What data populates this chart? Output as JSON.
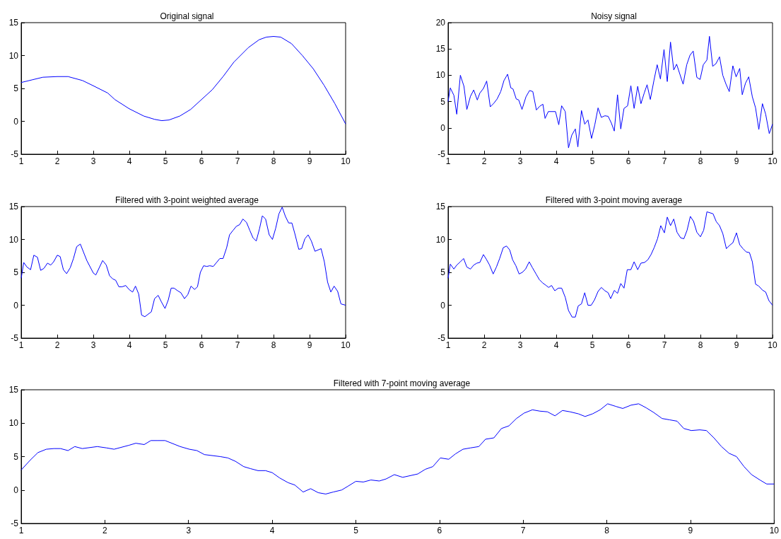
{
  "chart_data": [
    {
      "type": "line",
      "title": "Original signal",
      "color": "#0000ff",
      "xlim": [
        1,
        10
      ],
      "xticks": [
        1,
        2,
        3,
        4,
        5,
        6,
        7,
        8,
        9,
        10
      ],
      "ylim": [
        -5,
        15
      ],
      "yticks": [
        -5,
        0,
        5,
        10,
        15
      ],
      "grid": false,
      "x": [
        1,
        1.3,
        1.6,
        2,
        2.3,
        2.7,
        3,
        3.4,
        3.6,
        4,
        4.4,
        4.7,
        4.9,
        5.1,
        5.4,
        5.7,
        6,
        6.3,
        6.6,
        6.9,
        7.3,
        7.6,
        7.8,
        8,
        8.2,
        8.5,
        8.8,
        9.1,
        9.4,
        9.7,
        10
      ],
      "values": [
        5.9,
        6.3,
        6.7,
        6.8,
        6.8,
        6.2,
        5.4,
        4.3,
        3.3,
        1.9,
        0.8,
        0.3,
        0.1,
        0.2,
        0.8,
        1.8,
        3.3,
        4.8,
        6.8,
        9,
        11.2,
        12.4,
        12.8,
        12.9,
        12.8,
        11.8,
        10,
        8,
        5.5,
        2.7,
        -0.4
      ]
    },
    {
      "type": "line",
      "title": "Noisy signal",
      "color": "#0000ff",
      "xlim": [
        1,
        10
      ],
      "xticks": [
        1,
        2,
        3,
        4,
        5,
        6,
        7,
        8,
        9,
        10
      ],
      "ylim": [
        -5,
        20
      ],
      "yticks": [
        -5,
        0,
        5,
        10,
        15,
        20
      ],
      "grid": false,
      "x": [
        1,
        1.06,
        1.16,
        1.24,
        1.34,
        1.44,
        1.52,
        1.62,
        1.71,
        1.81,
        1.88,
        1.98,
        2.07,
        2.17,
        2.27,
        2.36,
        2.46,
        2.55,
        2.65,
        2.74,
        2.8,
        2.89,
        2.96,
        3.05,
        3.16,
        3.26,
        3.35,
        3.45,
        3.54,
        3.63,
        3.69,
        3.78,
        3.98,
        4.07,
        4.15,
        4.25,
        4.34,
        4.43,
        4.53,
        4.6,
        4.7,
        4.79,
        4.88,
        4.98,
        5.07,
        5.16,
        5.25,
        5.35,
        5.44,
        5.53,
        5.61,
        5.7,
        5.79,
        5.88,
        5.98,
        6.07,
        6.16,
        6.26,
        6.35,
        6.44,
        6.52,
        6.61,
        6.71,
        6.8,
        6.89,
        6.99,
        7.08,
        7.17,
        7.26,
        7.34,
        7.43,
        7.52,
        7.62,
        7.71,
        7.8,
        7.9,
        7.99,
        8.08,
        8.18,
        8.25,
        8.34,
        8.43,
        8.53,
        8.62,
        8.71,
        8.8,
        8.9,
        8.99,
        9.09,
        9.16,
        9.25,
        9.34,
        9.44,
        9.53,
        9.62,
        9.72,
        9.81,
        9.91,
        10
      ],
      "values": [
        5,
        7.6,
        6.2,
        2.6,
        10,
        7.9,
        3.5,
        6,
        7.2,
        5.3,
        6.6,
        7.5,
        8.9,
        4,
        4.7,
        5.5,
        6.9,
        9,
        10.2,
        7.6,
        7.4,
        5.5,
        5.3,
        3.5,
        5.9,
        7.1,
        6.9,
        3.4,
        4.1,
        4.5,
        1.8,
        3.1,
        3.1,
        0.6,
        4.2,
        3.1,
        -3.8,
        -1.4,
        -0.2,
        -3.6,
        3.3,
        0.7,
        1.5,
        -2,
        0.6,
        3.8,
        2,
        2.3,
        2.2,
        0.9,
        -0.6,
        6.3,
        -0.2,
        3.7,
        4.2,
        8,
        3.7,
        7.9,
        4.6,
        6.6,
        8.2,
        5.4,
        9,
        12,
        9.3,
        14.9,
        8.8,
        16.3,
        11,
        12.1,
        10.2,
        8.3,
        12,
        13.8,
        14.6,
        9.6,
        9.2,
        12,
        12.9,
        17.4,
        11.7,
        12.2,
        13.5,
        10,
        8.3,
        6.9,
        11.8,
        9.7,
        11.3,
        6.3,
        8.5,
        9.7,
        5.9,
        3.8,
        -0.3,
        4.6,
        2.6,
        -1.1,
        0.7
      ]
    },
    {
      "type": "line",
      "title": "Filtered with 3-point weighted average",
      "color": "#0000ff",
      "xlim": [
        1,
        10
      ],
      "xticks": [
        1,
        2,
        3,
        4,
        5,
        6,
        7,
        8,
        9,
        10
      ],
      "ylim": [
        -5,
        15
      ],
      "yticks": [
        -5,
        0,
        5,
        10,
        15
      ],
      "grid": false,
      "x": [
        1,
        1.07,
        1.16,
        1.26,
        1.35,
        1.45,
        1.54,
        1.63,
        1.73,
        1.82,
        1.9,
        2,
        2.08,
        2.17,
        2.26,
        2.36,
        2.45,
        2.54,
        2.64,
        2.82,
        3,
        3.07,
        3.26,
        3.36,
        3.45,
        3.54,
        3.62,
        3.71,
        3.8,
        3.9,
        3.99,
        4.09,
        4.17,
        4.26,
        4.34,
        4.43,
        4.61,
        4.7,
        4.8,
        4.89,
        4.99,
        5.08,
        5.16,
        5.24,
        5.34,
        5.43,
        5.53,
        5.62,
        5.71,
        5.81,
        5.89,
        5.97,
        6.06,
        6.15,
        6.23,
        6.33,
        6.42,
        6.51,
        6.6,
        6.7,
        6.78,
        6.88,
        6.97,
        7.06,
        7.15,
        7.25,
        7.34,
        7.43,
        7.52,
        7.61,
        7.69,
        7.78,
        7.88,
        7.97,
        8.06,
        8.15,
        8.24,
        8.33,
        8.42,
        8.51,
        8.6,
        8.7,
        8.78,
        8.87,
        8.96,
        9.05,
        9.15,
        9.32,
        9.41,
        9.5,
        9.59,
        9.68,
        9.78,
        9.87,
        10
      ],
      "values": [
        4.1,
        6.5,
        5.8,
        5.4,
        7.6,
        7.3,
        5.3,
        5.6,
        6.4,
        6.1,
        6.6,
        7.6,
        7.4,
        5.4,
        4.8,
        5.7,
        7.1,
        8.9,
        9.3,
        6.8,
        4.9,
        4.6,
        6.8,
        6.1,
        4.5,
        4,
        3.8,
        2.8,
        2.8,
        3,
        2.4,
        2,
        2.9,
        1.7,
        -1.5,
        -1.75,
        -1,
        1,
        1.5,
        0.5,
        -0.5,
        0.8,
        2.6,
        2.6,
        2.2,
        1.9,
        1,
        1.6,
        2.9,
        2.4,
        2.8,
        5,
        6,
        5.9,
        6,
        5.9,
        6.5,
        7.1,
        7.1,
        8.75,
        10.7,
        11.4,
        12,
        12.25,
        13.1,
        12.6,
        11.4,
        10.25,
        9.75,
        11.6,
        13.6,
        13.1,
        10.7,
        10,
        11.7,
        13.9,
        14.9,
        13.5,
        12.5,
        12.5,
        10.7,
        8.5,
        8.6,
        10.1,
        10.7,
        9.75,
        8.2,
        8.6,
        6.6,
        3.5,
        2,
        2.9,
        2.1,
        0.2,
        0
      ]
    },
    {
      "type": "line",
      "title": "Filtered with 3-point moving average",
      "color": "#0000ff",
      "xlim": [
        1,
        10
      ],
      "xticks": [
        1,
        2,
        3,
        4,
        5,
        6,
        7,
        8,
        9,
        10
      ],
      "ylim": [
        -5,
        15
      ],
      "yticks": [
        -5,
        0,
        5,
        10,
        15
      ],
      "grid": false,
      "x": [
        1,
        1.06,
        1.16,
        1.24,
        1.34,
        1.43,
        1.52,
        1.62,
        1.71,
        1.8,
        1.88,
        1.98,
        2.06,
        2.15,
        2.25,
        2.34,
        2.43,
        2.53,
        2.62,
        2.71,
        2.79,
        2.88,
        2.97,
        3.06,
        3.15,
        3.25,
        3.34,
        3.44,
        3.53,
        3.62,
        3.72,
        3.79,
        3.87,
        3.96,
        4.06,
        4.15,
        4.25,
        4.34,
        4.44,
        4.53,
        4.61,
        4.7,
        4.79,
        4.88,
        4.97,
        5.06,
        5.16,
        5.25,
        5.35,
        5.44,
        5.51,
        5.61,
        5.7,
        5.79,
        5.88,
        5.97,
        6.07,
        6.16,
        6.26,
        6.35,
        6.45,
        6.54,
        6.63,
        6.72,
        6.81,
        6.9,
        7,
        7.08,
        7.17,
        7.26,
        7.35,
        7.45,
        7.54,
        7.63,
        7.72,
        7.81,
        7.9,
        8,
        8.09,
        8.18,
        8.35,
        8.44,
        8.53,
        8.62,
        8.72,
        8.81,
        8.9,
        9,
        9.09,
        9.18,
        9.27,
        9.36,
        9.44,
        9.53,
        9.62,
        9.72,
        9.81,
        9.9,
        10
      ],
      "values": [
        4.1,
        6.25,
        5.5,
        6.1,
        6.6,
        7.1,
        5.8,
        5.5,
        6.1,
        6.4,
        6.5,
        7.7,
        7,
        6.1,
        4.75,
        5.8,
        7.1,
        8.75,
        9,
        8.4,
        6.9,
        6,
        4.75,
        5,
        5.5,
        6.6,
        5.7,
        4.75,
        3.9,
        3.4,
        3,
        2.7,
        3,
        2.2,
        2.6,
        2.6,
        1.2,
        -0.8,
        -1.8,
        -1.8,
        -0.1,
        0.2,
        1.9,
        0,
        0,
        0.8,
        2.1,
        2.7,
        2.2,
        1.9,
        1,
        2.25,
        1.8,
        3.3,
        2.6,
        5.4,
        5.4,
        6.6,
        5.4,
        6.4,
        6.5,
        6.9,
        7.7,
        8.8,
        10.1,
        12.1,
        11,
        13.4,
        12.1,
        13.1,
        11.1,
        10.25,
        10.1,
        11.4,
        13.5,
        12.75,
        11.1,
        10.4,
        11.4,
        14.2,
        13.9,
        12.7,
        12.1,
        10.9,
        8.6,
        9.1,
        9.5,
        11,
        9.2,
        8.6,
        8.1,
        8,
        6.6,
        3.2,
        2.9,
        2.3,
        2,
        0.7,
        0
      ]
    },
    {
      "type": "line",
      "title": "Filtered with 7-point moving average",
      "color": "#0000ff",
      "xlim": [
        1,
        10
      ],
      "xticks": [
        1,
        2,
        3,
        4,
        5,
        6,
        7,
        8,
        9,
        10
      ],
      "ylim": [
        -5,
        15
      ],
      "yticks": [
        -5,
        0,
        5,
        10,
        15
      ],
      "grid": false,
      "x": [
        1,
        1.11,
        1.2,
        1.3,
        1.39,
        1.47,
        1.56,
        1.64,
        1.73,
        1.91,
        2.02,
        2.11,
        2.29,
        2.37,
        2.47,
        2.55,
        2.63,
        2.72,
        2.9,
        3.01,
        3.1,
        3.19,
        3.38,
        3.47,
        3.56,
        3.66,
        3.74,
        3.83,
        3.92,
        4,
        4.09,
        4.19,
        4.27,
        4.37,
        4.46,
        4.55,
        4.64,
        4.73,
        4.83,
        4.91,
        5,
        5.09,
        5.18,
        5.28,
        5.36,
        5.46,
        5.56,
        5.74,
        5.83,
        5.92,
        6.01,
        6.11,
        6.19,
        6.28,
        6.37,
        6.47,
        6.55,
        6.65,
        6.74,
        6.83,
        6.92,
        7.01,
        7.11,
        7.2,
        7.29,
        7.38,
        7.47,
        7.56,
        7.66,
        7.74,
        7.83,
        7.92,
        8.01,
        8.11,
        8.19,
        8.29,
        8.38,
        8.47,
        8.56,
        8.66,
        8.75,
        8.84,
        8.92,
        9.01,
        9.11,
        9.19,
        9.28,
        9.37,
        9.46,
        9.55,
        9.64,
        9.73,
        9.83,
        9.91,
        10
      ],
      "values": [
        3,
        4.5,
        5.6,
        6.1,
        6.2,
        6.2,
        5.9,
        6.5,
        6.2,
        6.5,
        6.3,
        6.1,
        6.7,
        7,
        6.8,
        7.4,
        7.4,
        7.4,
        6.5,
        6.1,
        5.9,
        5.3,
        5,
        4.8,
        4.3,
        3.5,
        3.2,
        2.9,
        2.9,
        2.6,
        1.8,
        1.1,
        0.75,
        -0.3,
        0.2,
        -0.4,
        -0.6,
        -0.3,
        0,
        0.6,
        1.3,
        1.2,
        1.5,
        1.35,
        1.65,
        2.3,
        1.9,
        2.4,
        3.1,
        3.5,
        4.8,
        4.6,
        5.4,
        6.1,
        6.3,
        6.5,
        7.6,
        7.8,
        9.2,
        9.6,
        10.7,
        11.5,
        12,
        11.8,
        11.7,
        11.1,
        11.9,
        11.7,
        11.4,
        11,
        11.4,
        12,
        12.9,
        12.5,
        12.2,
        12.7,
        12.9,
        12.3,
        11.6,
        10.7,
        10.5,
        10.3,
        9.2,
        8.9,
        9,
        8.9,
        7.8,
        6.5,
        5.5,
        5,
        3.5,
        2.3,
        1.5,
        0.9,
        0.9
      ]
    }
  ]
}
